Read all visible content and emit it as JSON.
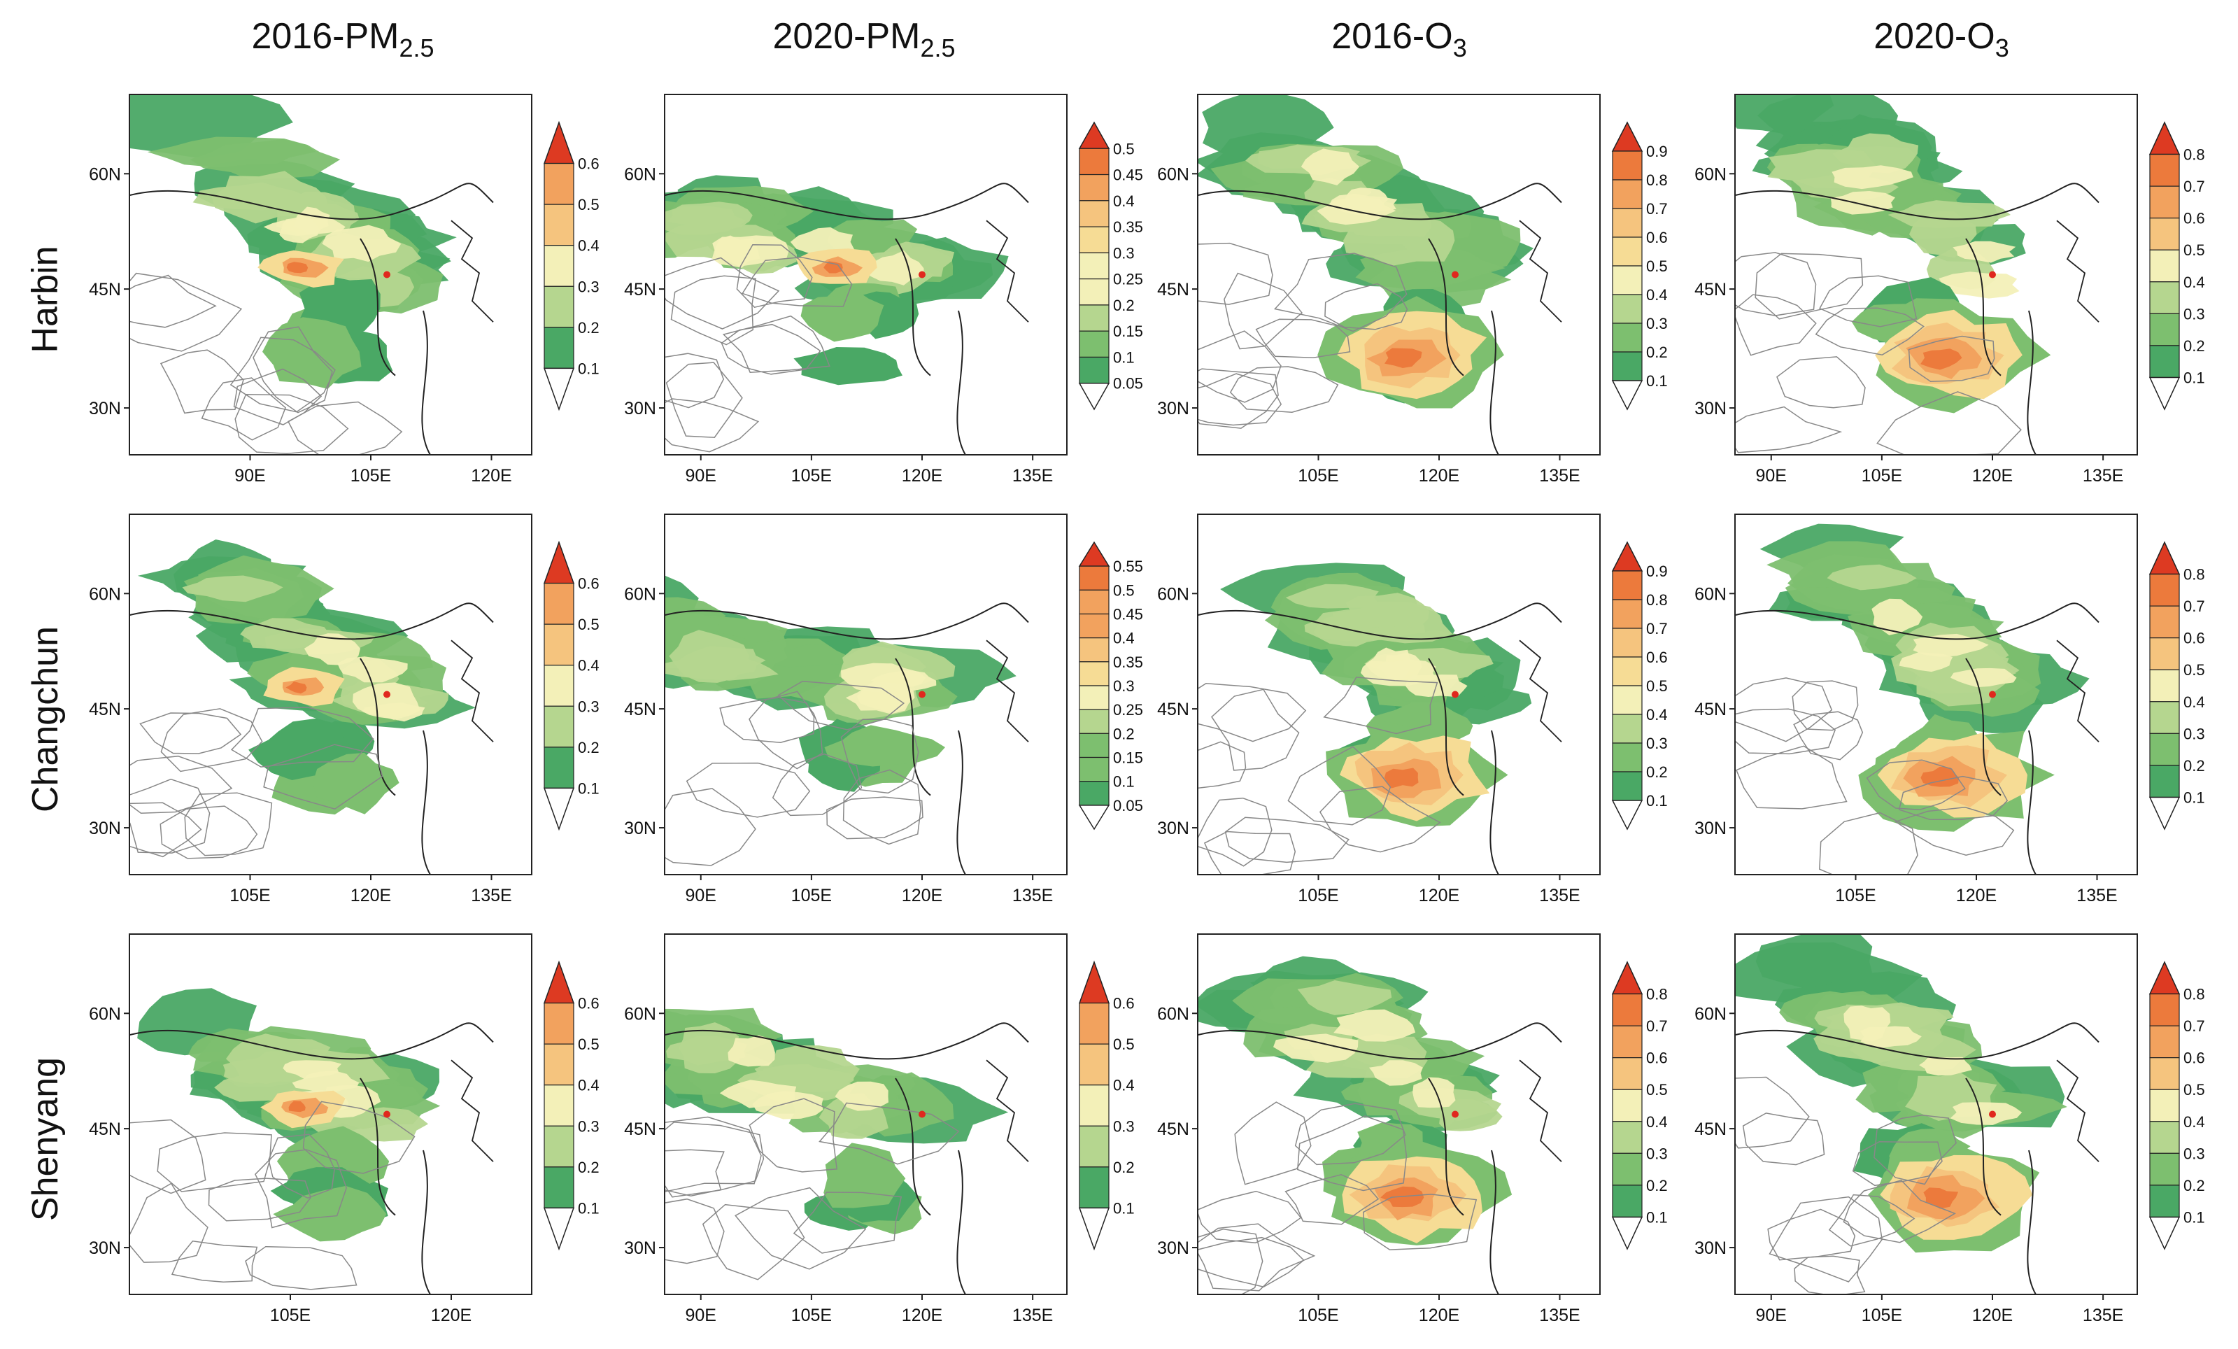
{
  "columns": [
    {
      "base": "2016-PM",
      "sub": "2.5"
    },
    {
      "base": "2020-PM",
      "sub": "2.5"
    },
    {
      "base": "2016-O",
      "sub": "3"
    },
    {
      "base": "2020-O",
      "sub": "3"
    }
  ],
  "rows": [
    "Harbin",
    "Changchun",
    "Shenyang"
  ],
  "palette": {
    "greens": [
      "#4aa865",
      "#7dbf6f",
      "#b5d68f"
    ],
    "pale": "#f3f0b8",
    "yellows": [
      "#f6dc95",
      "#f5c47e"
    ],
    "oranges": [
      "#f2a25e",
      "#ec7a3c"
    ],
    "red": "#dd3a22",
    "outline": "#222222",
    "marker": "#e0281e"
  },
  "panels": [
    {
      "row": 0,
      "col": 0,
      "lat_labels": [
        "60N",
        "45N",
        "30N"
      ],
      "lon_labels": [
        "90E",
        "105E",
        "120E"
      ],
      "colorbar": [
        "0.6",
        "0.5",
        "0.4",
        "0.3",
        "0.2",
        "0.1"
      ],
      "plume": "nw",
      "hot": "center"
    },
    {
      "row": 0,
      "col": 1,
      "lat_labels": [
        "60N",
        "45N",
        "30N"
      ],
      "lon_labels": [
        "90E",
        "105E",
        "120E",
        "135E"
      ],
      "colorbar": [
        "0.5",
        "0.45",
        "0.4",
        "0.35",
        "0.3",
        "0.25",
        "0.2",
        "0.15",
        "0.1",
        "0.05"
      ],
      "plume": "w",
      "hot": "center"
    },
    {
      "row": 0,
      "col": 2,
      "lat_labels": [
        "60N",
        "45N",
        "30N"
      ],
      "lon_labels": [
        "105E",
        "120E",
        "135E"
      ],
      "colorbar": [
        "0.9",
        "0.8",
        "0.7",
        "0.6",
        "0.5",
        "0.4",
        "0.3",
        "0.2",
        "0.1"
      ],
      "plume": "nw",
      "hot": "south"
    },
    {
      "row": 0,
      "col": 3,
      "lat_labels": [
        "60N",
        "45N",
        "30N"
      ],
      "lon_labels": [
        "90E",
        "105E",
        "120E",
        "135E"
      ],
      "colorbar": [
        "0.8",
        "0.7",
        "0.6",
        "0.5",
        "0.4",
        "0.3",
        "0.2",
        "0.1"
      ],
      "plume": "nw",
      "hot": "south"
    },
    {
      "row": 1,
      "col": 0,
      "lat_labels": [
        "60N",
        "45N",
        "30N"
      ],
      "lon_labels": [
        "105E",
        "120E",
        "135E"
      ],
      "colorbar": [
        "0.6",
        "0.5",
        "0.4",
        "0.3",
        "0.2",
        "0.1"
      ],
      "plume": "nw",
      "hot": "center"
    },
    {
      "row": 1,
      "col": 1,
      "lat_labels": [
        "60N",
        "45N",
        "30N"
      ],
      "lon_labels": [
        "90E",
        "105E",
        "120E",
        "135E"
      ],
      "colorbar": [
        "0.55",
        "0.5",
        "0.45",
        "0.4",
        "0.35",
        "0.3",
        "0.25",
        "0.2",
        "0.15",
        "0.1",
        "0.05"
      ],
      "plume": "w",
      "hot": "none"
    },
    {
      "row": 1,
      "col": 2,
      "lat_labels": [
        "60N",
        "45N",
        "30N"
      ],
      "lon_labels": [
        "105E",
        "120E",
        "135E"
      ],
      "colorbar": [
        "0.9",
        "0.8",
        "0.7",
        "0.6",
        "0.5",
        "0.4",
        "0.3",
        "0.2",
        "0.1"
      ],
      "plume": "nw",
      "hot": "south"
    },
    {
      "row": 1,
      "col": 3,
      "lat_labels": [
        "60N",
        "45N",
        "30N"
      ],
      "lon_labels": [
        "105E",
        "120E",
        "135E"
      ],
      "colorbar": [
        "0.8",
        "0.7",
        "0.6",
        "0.5",
        "0.4",
        "0.3",
        "0.2",
        "0.1"
      ],
      "plume": "nw",
      "hot": "south"
    },
    {
      "row": 2,
      "col": 0,
      "lat_labels": [
        "60N",
        "45N",
        "30N"
      ],
      "lon_labels": [
        "105E",
        "120E"
      ],
      "colorbar": [
        "0.6",
        "0.5",
        "0.4",
        "0.3",
        "0.2",
        "0.1"
      ],
      "plume": "wide",
      "hot": "center"
    },
    {
      "row": 2,
      "col": 1,
      "lat_labels": [
        "60N",
        "45N",
        "30N"
      ],
      "lon_labels": [
        "90E",
        "105E",
        "120E",
        "135E"
      ],
      "colorbar": [
        "0.6",
        "0.5",
        "0.4",
        "0.3",
        "0.2",
        "0.1"
      ],
      "plume": "w",
      "hot": "none"
    },
    {
      "row": 2,
      "col": 2,
      "lat_labels": [
        "60N",
        "45N",
        "30N"
      ],
      "lon_labels": [
        "105E",
        "120E",
        "135E"
      ],
      "colorbar": [
        "0.8",
        "0.7",
        "0.6",
        "0.5",
        "0.4",
        "0.3",
        "0.2",
        "0.1"
      ],
      "plume": "nw",
      "hot": "south"
    },
    {
      "row": 2,
      "col": 3,
      "lat_labels": [
        "60N",
        "45N",
        "30N"
      ],
      "lon_labels": [
        "90E",
        "105E",
        "120E",
        "135E"
      ],
      "colorbar": [
        "0.8",
        "0.7",
        "0.6",
        "0.5",
        "0.4",
        "0.3",
        "0.2",
        "0.1"
      ],
      "plume": "nw",
      "hot": "south"
    }
  ]
}
